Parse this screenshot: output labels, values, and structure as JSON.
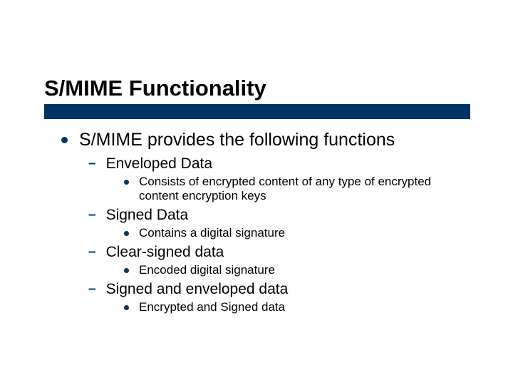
{
  "slide": {
    "title": "S/MIME Functionality",
    "title_fontsize": 31,
    "title_bar_color": "#003366",
    "bullet_color": "#003366",
    "background_color": "#ffffff",
    "lvl1_fontsize": 25,
    "lvl2_fontsize": 21,
    "lvl3_fontsize": 17,
    "lvl1": {
      "text": "S/MIME provides the following functions",
      "children": [
        {
          "text": "Enveloped Data",
          "children": [
            {
              "text": "Consists of encrypted content of any type of encrypted content encryption keys"
            }
          ]
        },
        {
          "text": "Signed Data",
          "children": [
            {
              "text": "Contains a digital signature"
            }
          ]
        },
        {
          "text": "Clear-signed data",
          "children": [
            {
              "text": "Encoded digital signature"
            }
          ]
        },
        {
          "text": "Signed and enveloped data",
          "children": [
            {
              "text": "Encrypted and Signed data"
            }
          ]
        }
      ]
    }
  }
}
